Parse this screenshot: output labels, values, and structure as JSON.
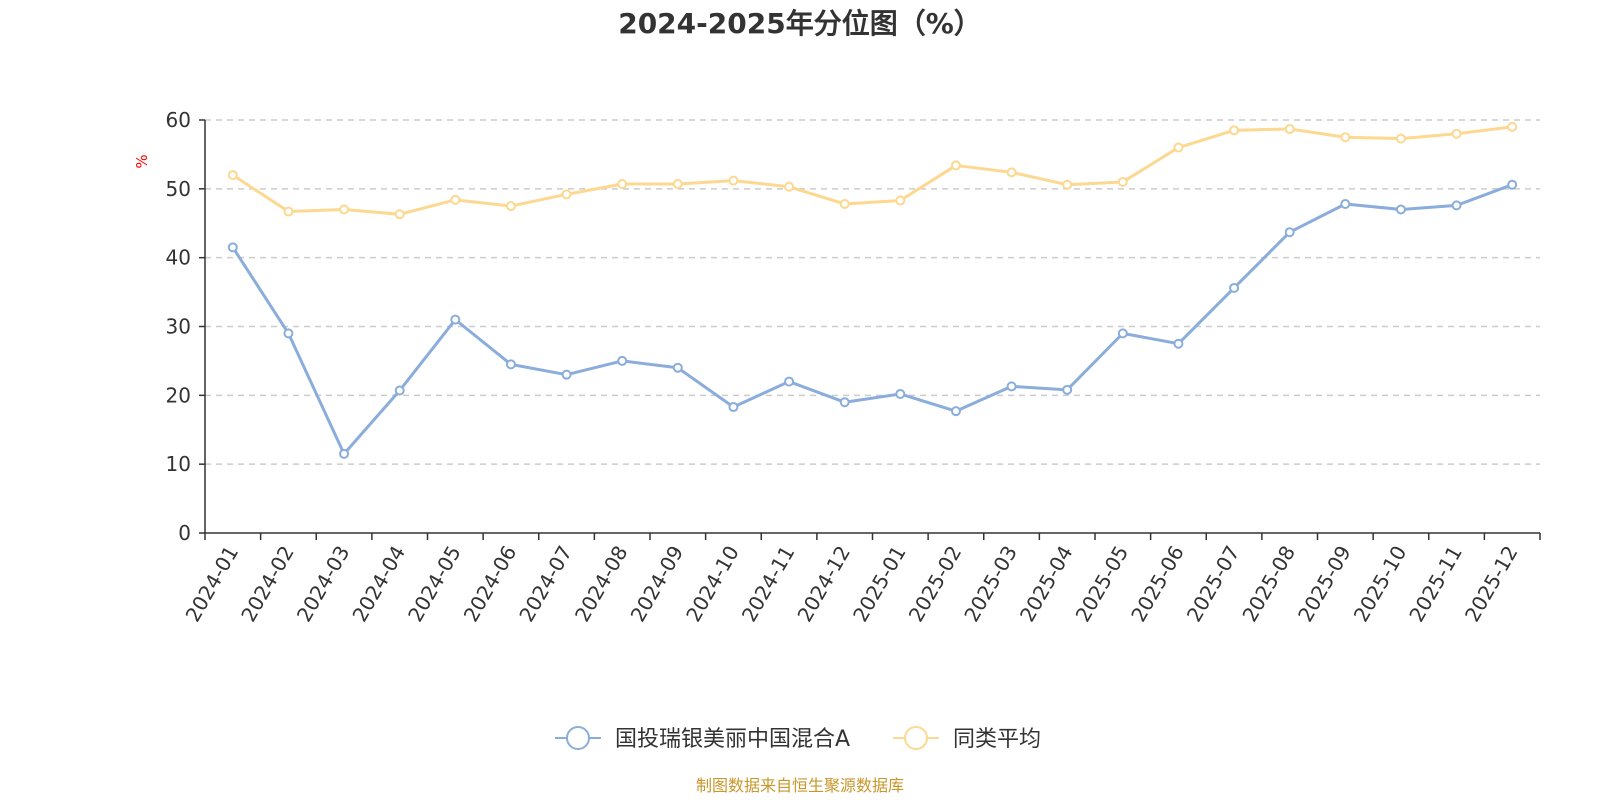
{
  "chart_data": {
    "type": "line",
    "title": "2024-2025年分位图（%）",
    "ylabel": "%",
    "ylim": [
      0,
      60
    ],
    "yticks": [
      0,
      10,
      20,
      30,
      40,
      50,
      60
    ],
    "grid": true,
    "legend_position": "bottom-center",
    "categories": [
      "2024-01",
      "2024-02",
      "2024-03",
      "2024-04",
      "2024-05",
      "2024-06",
      "2024-07",
      "2024-08",
      "2024-09",
      "2024-10",
      "2024-11",
      "2024-12",
      "2025-01",
      "2025-02",
      "2025-03",
      "2025-04",
      "2025-05",
      "2025-06",
      "2025-07",
      "2025-08",
      "2025-09",
      "2025-10",
      "2025-11",
      "2025-12"
    ],
    "series": [
      {
        "name": "国投瑞银美丽中国混合A",
        "color": "#8aaddb",
        "values": [
          41.5,
          29,
          11.5,
          20.7,
          31,
          24.5,
          23,
          25,
          24,
          18.3,
          22,
          19,
          20.2,
          17.7,
          21.3,
          20.8,
          29,
          27.5,
          35.6,
          43.7,
          47.8,
          47,
          47.6,
          50.6
        ]
      },
      {
        "name": "同类平均",
        "color": "#fcd890",
        "values": [
          52,
          46.7,
          47,
          46.3,
          48.4,
          47.5,
          49.2,
          50.7,
          50.7,
          51.2,
          50.3,
          47.8,
          48.3,
          53.4,
          52.4,
          50.6,
          51,
          56,
          58.5,
          58.7,
          57.5,
          57.3,
          58,
          59
        ]
      }
    ]
  },
  "source_text": "制图数据来自恒生聚源数据库",
  "colors": {
    "axis": "#333333",
    "grid": "#cccccc",
    "ylabel": "#ff0000",
    "source": "#c8962a"
  }
}
